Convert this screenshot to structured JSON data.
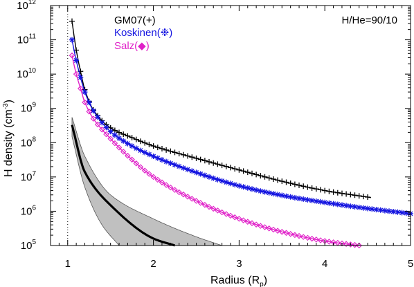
{
  "chart_data": {
    "type": "line",
    "xlabel": "Radius (R",
    "xlabel_sub": "p",
    "xlabel_end": ")",
    "ylabel": "H density (cm",
    "ylabel_sup": "-3",
    "ylabel_end": ")",
    "xlim": [
      0.8,
      5.0
    ],
    "ylim": [
      100000,
      1000000000000
    ],
    "yscale": "log",
    "x_ticks": [
      "1",
      "2",
      "3",
      "4",
      "5"
    ],
    "y_ticks": [
      {
        "base": "10",
        "exp": "5",
        "value": 100000
      },
      {
        "base": "10",
        "exp": "6",
        "value": 1000000
      },
      {
        "base": "10",
        "exp": "7",
        "value": 10000000
      },
      {
        "base": "10",
        "exp": "8",
        "value": 100000000
      },
      {
        "base": "10",
        "exp": "9",
        "value": 1000000000
      },
      {
        "base": "10",
        "exp": "10",
        "value": 10000000000
      },
      {
        "base": "10",
        "exp": "11",
        "value": 100000000000
      },
      {
        "base": "10",
        "exp": "12",
        "value": 1000000000000
      }
    ],
    "reference_line_x": 1.0,
    "annotation": "H/He=90/10",
    "series": [
      {
        "name": "GM07(+)",
        "color": "#000000",
        "marker": "plus",
        "x": [
          1.05,
          1.1,
          1.15,
          1.2,
          1.3,
          1.5,
          1.75,
          2.0,
          2.5,
          3.0,
          3.5,
          4.0,
          4.54
        ],
        "y": [
          350000000000.0,
          50000000000.0,
          12000000000.0,
          3500000000.0,
          900000000.0,
          270000000.0,
          140000000.0,
          80000000.0,
          35000000.0,
          16000000.0,
          7500000.0,
          4000000.0,
          2500000.0
        ]
      },
      {
        "name": "Koskinen(❉)",
        "color": "#1515e0",
        "marker": "asterisk",
        "x": [
          1.05,
          1.1,
          1.15,
          1.2,
          1.3,
          1.5,
          1.75,
          2.0,
          2.5,
          3.0,
          3.5,
          4.0,
          4.5,
          5.0
        ],
        "y": [
          100000000000.0,
          25000000000.0,
          8000000000.0,
          3000000000.0,
          850000000.0,
          210000000.0,
          80000000.0,
          40000000.0,
          13500000.0,
          5500000.0,
          2900000.0,
          1800000.0,
          1200000.0,
          850000.0
        ]
      },
      {
        "name": "Salz(◆)",
        "color": "#e020c8",
        "marker": "diamond",
        "x": [
          1.05,
          1.1,
          1.15,
          1.2,
          1.3,
          1.5,
          1.75,
          2.0,
          2.5,
          3.0,
          3.5,
          4.0,
          4.4
        ],
        "y": [
          35000000000.0,
          10000000000.0,
          3800000000.0,
          1500000000.0,
          500000000.0,
          130000000.0,
          32000000.0,
          10000000.0,
          2000000.0,
          600000.0,
          250000.0,
          135000.0,
          100000.0
        ]
      }
    ],
    "band": {
      "color": "#c0c0c0",
      "upper": {
        "x": [
          1.05,
          1.2,
          1.5,
          2.0,
          2.5,
          2.8
        ],
        "y": [
          550000000.0,
          40000000.0,
          3000000.0,
          600000.0,
          180000.0,
          100000.0
        ]
      },
      "lower": {
        "x": [
          1.05,
          1.2,
          1.4,
          1.6
        ],
        "y": [
          150000000.0,
          5000000.0,
          400000.0,
          100000.0
        ]
      },
      "median": {
        "x": [
          1.05,
          1.2,
          1.5,
          2.0,
          2.25
        ],
        "y": [
          330000000.0,
          14000000.0,
          1500000.0,
          160000.0,
          100000.0
        ]
      }
    }
  }
}
